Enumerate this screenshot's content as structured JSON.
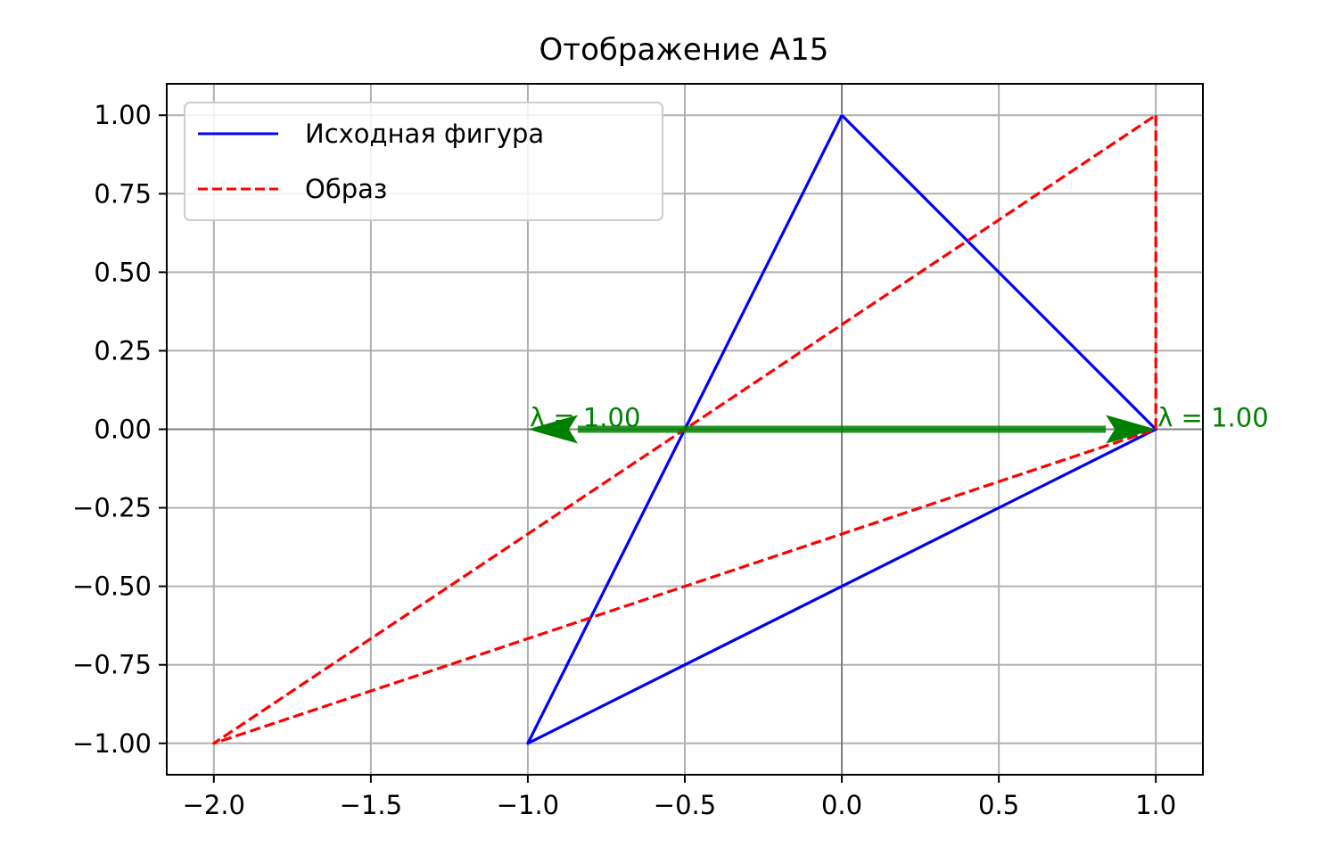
{
  "chart_data": {
    "type": "line",
    "title": "Отображение A15",
    "xlabel": "",
    "ylabel": "",
    "xlim": [
      -2.15,
      1.15
    ],
    "ylim": [
      -1.1,
      1.1
    ],
    "grid": true,
    "xticks": [
      -2.0,
      -1.5,
      -1.0,
      -0.5,
      0.0,
      0.5,
      1.0
    ],
    "yticks": [
      -1.0,
      -0.75,
      -0.5,
      -0.25,
      0.0,
      0.25,
      0.5,
      0.75,
      1.0
    ],
    "xtick_labels": [
      "−2.0",
      "−1.5",
      "−1.0",
      "−0.5",
      "0.0",
      "0.5",
      "1.0"
    ],
    "ytick_labels": [
      "−1.00",
      "−0.75",
      "−0.50",
      "−0.25",
      "0.00",
      "0.25",
      "0.50",
      "0.75",
      "1.00"
    ],
    "series": [
      {
        "name": "Исходная фигура",
        "color": "#0000ff",
        "style": "solid",
        "x": [
          0,
          1,
          -1,
          0
        ],
        "y": [
          1,
          0,
          -1,
          1
        ]
      },
      {
        "name": "Образ",
        "color": "#ff0000",
        "style": "dashed",
        "x": [
          1,
          1,
          -2,
          1
        ],
        "y": [
          1,
          0,
          -1,
          1
        ]
      }
    ],
    "arrows": [
      {
        "from": [
          -0.5,
          0
        ],
        "to": [
          1.0,
          0
        ],
        "color": "#008000",
        "label": "λ = 1.00",
        "label_at": [
          1.0,
          0
        ]
      },
      {
        "from": [
          -0.5,
          0
        ],
        "to": [
          -1.0,
          0
        ],
        "color": "#008000",
        "label": "λ = 1.00",
        "label_at": [
          -1.0,
          0
        ]
      }
    ],
    "legend": {
      "placement": "top-left"
    }
  }
}
